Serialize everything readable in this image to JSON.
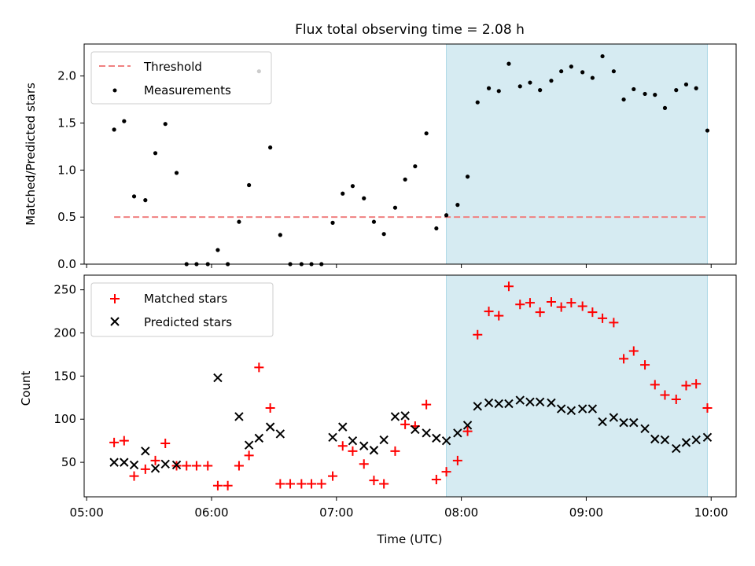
{
  "figure": {
    "title": "Flux total observing time = 2.08 h",
    "colors": {
      "threshold": "#f08080",
      "measurement": "#000000",
      "matched": "#ff0000",
      "predicted": "#000000",
      "highlight": "#add8e6"
    }
  },
  "chart_data": [
    {
      "type": "scatter",
      "panel": "top",
      "ylabel": "Matched/Predicted stars",
      "ylim": [
        0,
        2.34
      ],
      "yticks": [
        "0.0",
        "0.5",
        "1.0",
        "1.5",
        "2.0"
      ],
      "xlim_hours": [
        4.98,
        10.2
      ],
      "highlight_span_hours": [
        7.88,
        9.97
      ],
      "legend": {
        "position": "top-left",
        "entries": [
          "Threshold",
          "Measurements"
        ]
      },
      "threshold": {
        "name": "Threshold",
        "value": 0.5,
        "x_range_hours": [
          5.22,
          9.97
        ]
      },
      "series": [
        {
          "name": "Measurements",
          "marker": "dot",
          "points": [
            [
              5.22,
              1.43
            ],
            [
              5.3,
              1.52
            ],
            [
              5.38,
              0.72
            ],
            [
              5.47,
              0.68
            ],
            [
              5.55,
              1.18
            ],
            [
              5.63,
              1.49
            ],
            [
              5.72,
              0.97
            ],
            [
              5.8,
              0.0
            ],
            [
              5.88,
              0.0
            ],
            [
              5.97,
              0.0
            ],
            [
              6.05,
              0.15
            ],
            [
              6.13,
              0.0
            ],
            [
              6.22,
              0.45
            ],
            [
              6.3,
              0.84
            ],
            [
              6.38,
              2.05
            ],
            [
              6.47,
              1.24
            ],
            [
              6.55,
              0.31
            ],
            [
              6.63,
              0.0
            ],
            [
              6.72,
              0.0
            ],
            [
              6.8,
              0.0
            ],
            [
              6.88,
              0.0
            ],
            [
              6.97,
              0.44
            ],
            [
              7.05,
              0.75
            ],
            [
              7.13,
              0.83
            ],
            [
              7.22,
              0.7
            ],
            [
              7.3,
              0.45
            ],
            [
              7.38,
              0.32
            ],
            [
              7.47,
              0.6
            ],
            [
              7.55,
              0.9
            ],
            [
              7.63,
              1.04
            ],
            [
              7.72,
              1.39
            ],
            [
              7.8,
              0.38
            ],
            [
              7.88,
              0.52
            ],
            [
              7.97,
              0.63
            ],
            [
              8.05,
              0.93
            ],
            [
              8.13,
              1.72
            ],
            [
              8.22,
              1.87
            ],
            [
              8.3,
              1.84
            ],
            [
              8.38,
              2.13
            ],
            [
              8.47,
              1.89
            ],
            [
              8.55,
              1.93
            ],
            [
              8.63,
              1.85
            ],
            [
              8.72,
              1.95
            ],
            [
              8.8,
              2.05
            ],
            [
              8.88,
              2.1
            ],
            [
              8.97,
              2.04
            ],
            [
              9.05,
              1.98
            ],
            [
              9.13,
              2.21
            ],
            [
              9.22,
              2.05
            ],
            [
              9.3,
              1.75
            ],
            [
              9.38,
              1.86
            ],
            [
              9.47,
              1.81
            ],
            [
              9.55,
              1.8
            ],
            [
              9.63,
              1.66
            ],
            [
              9.72,
              1.85
            ],
            [
              9.8,
              1.91
            ],
            [
              9.88,
              1.87
            ],
            [
              9.97,
              1.42
            ]
          ]
        }
      ]
    },
    {
      "type": "scatter",
      "panel": "bottom",
      "xlabel": "Time (UTC)",
      "ylabel": "Count",
      "ylim": [
        10,
        267
      ],
      "yticks": [
        "50",
        "100",
        "150",
        "200",
        "250"
      ],
      "xticks": [
        "05:00",
        "06:00",
        "07:00",
        "08:00",
        "09:00",
        "10:00"
      ],
      "xlim_hours": [
        4.98,
        10.2
      ],
      "highlight_span_hours": [
        7.88,
        9.97
      ],
      "legend": {
        "position": "top-left",
        "entries": [
          "Matched stars",
          "Predicted stars"
        ]
      },
      "series": [
        {
          "name": "Matched stars",
          "marker": "plus",
          "points": [
            [
              5.22,
              73
            ],
            [
              5.3,
              75
            ],
            [
              5.38,
              34
            ],
            [
              5.47,
              42
            ],
            [
              5.55,
              52
            ],
            [
              5.63,
              72
            ],
            [
              5.72,
              46
            ],
            [
              5.8,
              46
            ],
            [
              5.88,
              46
            ],
            [
              5.97,
              46
            ],
            [
              6.05,
              23
            ],
            [
              6.13,
              23
            ],
            [
              6.22,
              46
            ],
            [
              6.3,
              58
            ],
            [
              6.38,
              160
            ],
            [
              6.47,
              113
            ],
            [
              6.55,
              25
            ],
            [
              6.63,
              25
            ],
            [
              6.72,
              25
            ],
            [
              6.8,
              25
            ],
            [
              6.88,
              25
            ],
            [
              6.97,
              34
            ],
            [
              7.05,
              69
            ],
            [
              7.13,
              63
            ],
            [
              7.22,
              48
            ],
            [
              7.3,
              29
            ],
            [
              7.38,
              25
            ],
            [
              7.47,
              63
            ],
            [
              7.55,
              94
            ],
            [
              7.63,
              92
            ],
            [
              7.72,
              117
            ],
            [
              7.8,
              30
            ],
            [
              7.88,
              39
            ],
            [
              7.97,
              52
            ],
            [
              8.05,
              86
            ],
            [
              8.13,
              198
            ],
            [
              8.22,
              225
            ],
            [
              8.3,
              220
            ],
            [
              8.38,
              254
            ],
            [
              8.47,
              233
            ],
            [
              8.55,
              235
            ],
            [
              8.63,
              224
            ],
            [
              8.72,
              236
            ],
            [
              8.8,
              230
            ],
            [
              8.88,
              235
            ],
            [
              8.97,
              231
            ],
            [
              9.05,
              224
            ],
            [
              9.13,
              217
            ],
            [
              9.22,
              212
            ],
            [
              9.3,
              170
            ],
            [
              9.38,
              179
            ],
            [
              9.47,
              163
            ],
            [
              9.55,
              140
            ],
            [
              9.63,
              128
            ],
            [
              9.72,
              123
            ],
            [
              9.8,
              139
            ],
            [
              9.88,
              141
            ],
            [
              9.97,
              113
            ]
          ]
        },
        {
          "name": "Predicted stars",
          "marker": "x",
          "points": [
            [
              5.22,
              50
            ],
            [
              5.3,
              50
            ],
            [
              5.38,
              47
            ],
            [
              5.47,
              63
            ],
            [
              5.55,
              43
            ],
            [
              5.63,
              48
            ],
            [
              5.72,
              47
            ],
            [
              6.05,
              148
            ],
            [
              6.22,
              103
            ],
            [
              6.3,
              70
            ],
            [
              6.38,
              78
            ],
            [
              6.47,
              91
            ],
            [
              6.55,
              83
            ],
            [
              6.97,
              79
            ],
            [
              7.05,
              91
            ],
            [
              7.13,
              75
            ],
            [
              7.22,
              69
            ],
            [
              7.3,
              64
            ],
            [
              7.38,
              76
            ],
            [
              7.47,
              103
            ],
            [
              7.55,
              104
            ],
            [
              7.63,
              88
            ],
            [
              7.72,
              84
            ],
            [
              7.8,
              78
            ],
            [
              7.88,
              75
            ],
            [
              7.97,
              84
            ],
            [
              8.05,
              93
            ],
            [
              8.13,
              115
            ],
            [
              8.22,
              119
            ],
            [
              8.3,
              118
            ],
            [
              8.38,
              118
            ],
            [
              8.47,
              122
            ],
            [
              8.55,
              120
            ],
            [
              8.63,
              120
            ],
            [
              8.72,
              119
            ],
            [
              8.8,
              112
            ],
            [
              8.88,
              110
            ],
            [
              8.97,
              112
            ],
            [
              9.05,
              112
            ],
            [
              9.13,
              97
            ],
            [
              9.22,
              102
            ],
            [
              9.3,
              96
            ],
            [
              9.38,
              96
            ],
            [
              9.47,
              89
            ],
            [
              9.55,
              77
            ],
            [
              9.63,
              76
            ],
            [
              9.72,
              66
            ],
            [
              9.8,
              73
            ],
            [
              9.88,
              76
            ],
            [
              9.97,
              79
            ]
          ]
        }
      ]
    }
  ]
}
